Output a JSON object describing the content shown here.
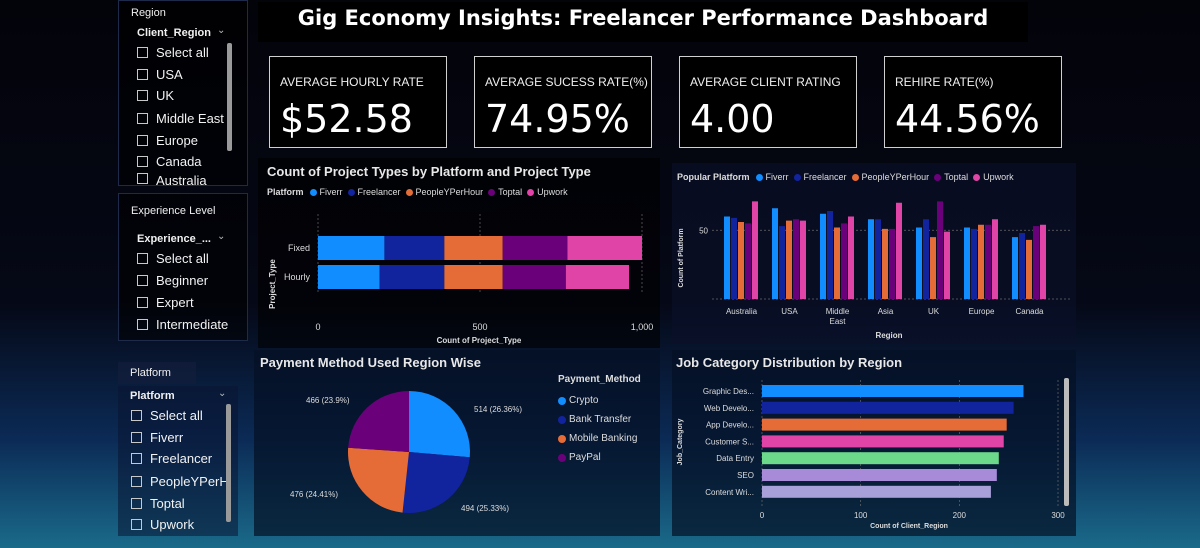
{
  "title": "Gig Economy Insights: Freelancer Performance Dashboard",
  "colors": {
    "fiverr": "#118dff",
    "freelancer": "#12239e",
    "peopleperhour": "#e66c37",
    "toptal": "#6b007b",
    "upwork": "#e044a7"
  },
  "slicers": {
    "region": {
      "title": "Region",
      "header": "Client_Region",
      "options": [
        "Select all",
        "USA",
        "UK",
        "Middle East",
        "Europe",
        "Canada",
        "Australia"
      ]
    },
    "experience": {
      "title": "Experience Level",
      "header": "Experience_...",
      "options": [
        "Select all",
        "Beginner",
        "Expert",
        "Intermediate"
      ]
    },
    "platform": {
      "title": "Platform",
      "header": "Platform",
      "options": [
        "Select all",
        "Fiverr",
        "Freelancer",
        "PeopleYPerHour",
        "Toptal",
        "Upwork"
      ]
    }
  },
  "kpis": [
    {
      "label": "AVERAGE HOURLY RATE",
      "value": "$52.58"
    },
    {
      "label": "AVERAGE SUCESS RATE(%)",
      "value": "74.95%"
    },
    {
      "label": "AVERAGE CLIENT RATING",
      "value": "4.00"
    },
    {
      "label": "REHIRE RATE(%)",
      "value": "44.56%"
    }
  ],
  "stacked_chart": {
    "title": "Count of Project Types by Platform and Project Type",
    "legend_title": "Platform",
    "legend": [
      "Fiverr",
      "Freelancer",
      "PeopleYPerHour",
      "Toptal",
      "Upwork"
    ],
    "ylabel": "Project_Type",
    "xlabel": "Count of Project_Type",
    "ticks": [
      "0",
      "500",
      "1,000"
    ]
  },
  "platform_chart": {
    "title": "Popular Platform",
    "legend": [
      "Fiverr",
      "Freelancer",
      "PeopleYPerHour",
      "Toptal",
      "Upwork"
    ],
    "ylabel": "Count of Platform",
    "xlabel": "Region",
    "ytick": "50",
    "categories": [
      "Australia",
      "USA",
      "Middle East",
      "Asia",
      "UK",
      "Europe",
      "Canada"
    ]
  },
  "pie_chart": {
    "title": "Payment Method Used Region Wise",
    "legend_title": "Payment_Method",
    "legend": [
      "Crypto",
      "Bank Transfer",
      "Mobile Banking",
      "PayPal"
    ],
    "labels": [
      "514 (26.36%)",
      "494 (25.33%)",
      "476 (24.41%)",
      "466 (23.9%)"
    ]
  },
  "job_chart": {
    "title": "Job Category Distribution by Region",
    "ylabel": "Job_Category",
    "xlabel": "Count of Client_Region",
    "ticks": [
      "0",
      "100",
      "200",
      "300"
    ]
  },
  "chart_data": [
    {
      "type": "bar",
      "orientation": "horizontal-stacked",
      "title": "Count of Project Types by Platform and Project Type",
      "categories": [
        "Fixed",
        "Hourly"
      ],
      "series": [
        {
          "name": "Fiverr",
          "values": [
            205,
            190
          ]
        },
        {
          "name": "Freelancer",
          "values": [
            185,
            200
          ]
        },
        {
          "name": "PeopleYPerHour",
          "values": [
            180,
            180
          ]
        },
        {
          "name": "Toptal",
          "values": [
            200,
            195
          ]
        },
        {
          "name": "Upwork",
          "values": [
            230,
            195
          ]
        }
      ],
      "xlabel": "Count of Project_Type",
      "ylabel": "Project_Type",
      "xlim": [
        0,
        1000
      ],
      "legend": "top"
    },
    {
      "type": "bar",
      "title": "Popular Platform",
      "categories": [
        "Australia",
        "USA",
        "Middle East",
        "Asia",
        "UK",
        "Europe",
        "Canada"
      ],
      "series": [
        {
          "name": "Fiverr",
          "values": [
            60,
            66,
            62,
            58,
            52,
            52,
            45
          ]
        },
        {
          "name": "Freelancer",
          "values": [
            59,
            53,
            64,
            58,
            58,
            51,
            48
          ]
        },
        {
          "name": "PeopleYPerHour",
          "values": [
            56,
            57,
            52,
            51,
            45,
            54,
            43
          ]
        },
        {
          "name": "Toptal",
          "values": [
            55,
            58,
            55,
            51,
            71,
            54,
            53
          ]
        },
        {
          "name": "Upwork",
          "values": [
            71,
            57,
            60,
            70,
            49,
            58,
            54
          ]
        }
      ],
      "xlabel": "Region",
      "ylabel": "Count of Platform",
      "ylim": [
        0,
        80
      ],
      "legend": "top",
      "grid": true
    },
    {
      "type": "pie",
      "title": "Payment Method Used Region Wise",
      "categories": [
        "Crypto",
        "Bank Transfer",
        "Mobile Banking",
        "PayPal"
      ],
      "values": [
        514,
        494,
        476,
        466
      ],
      "percentages": [
        26.36,
        25.33,
        24.41,
        23.9
      ],
      "legend": "right"
    },
    {
      "type": "bar",
      "orientation": "horizontal",
      "title": "Job Category Distribution by Region",
      "categories": [
        "Graphic Des...",
        "Web Develo...",
        "App Develo...",
        "Customer S...",
        "Data Entry",
        "SEO",
        "Content Wri..."
      ],
      "values": [
        265,
        255,
        248,
        245,
        240,
        238,
        232
      ],
      "colors": [
        "#118dff",
        "#12239e",
        "#e66c37",
        "#e044a7",
        "#6bd88a",
        "#a78ad8",
        "#a8a0d8"
      ],
      "xlabel": "Count of Client_Region",
      "ylabel": "Job_Category",
      "xlim": [
        0,
        300
      ]
    }
  ]
}
